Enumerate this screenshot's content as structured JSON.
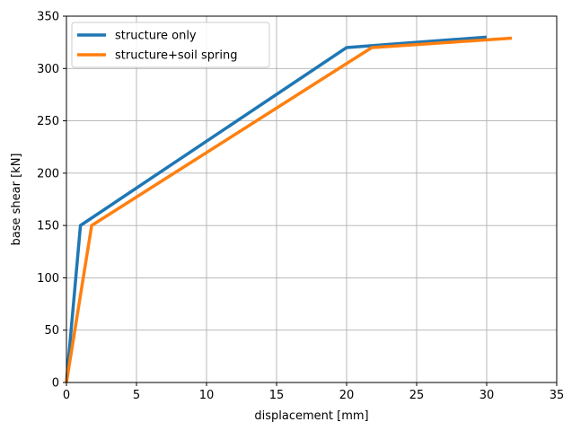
{
  "chart_data": {
    "type": "line",
    "title": "",
    "xlabel": "displacement [mm]",
    "ylabel": "base shear [kN]",
    "xlim": [
      0,
      35
    ],
    "ylim": [
      0,
      350
    ],
    "xticks": [
      0,
      5,
      10,
      15,
      20,
      25,
      30,
      35
    ],
    "yticks": [
      0,
      50,
      100,
      150,
      200,
      250,
      300,
      350
    ],
    "grid": true,
    "legend_position": "top-left",
    "series": [
      {
        "name": "structure only",
        "color": "#1f77b4",
        "x": [
          0,
          1.0,
          20.0,
          22.0,
          30.0
        ],
        "y": [
          0,
          150,
          320,
          322,
          330
        ]
      },
      {
        "name": "structure+soil spring",
        "color": "#ff7f0e",
        "x": [
          0,
          1.8,
          21.8,
          31.8
        ],
        "y": [
          0,
          150,
          320,
          329
        ]
      }
    ]
  }
}
